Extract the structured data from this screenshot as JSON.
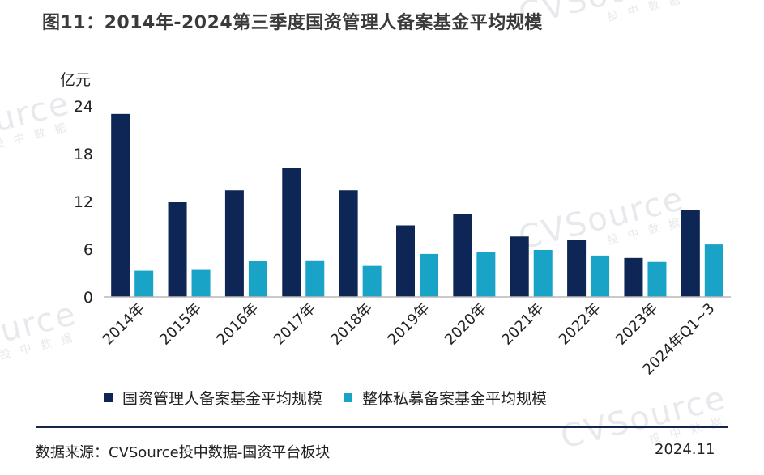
{
  "title": "图11：2014年-2024第三季度国资管理人备案基金平均规模",
  "y_unit": "亿元",
  "watermark": {
    "brand": "CVSource",
    "sub": "投中数据"
  },
  "source": "数据来源：CVSource投中数据-国资平台板块",
  "date": "2024.11",
  "colors": {
    "series1": "#0d2656",
    "series2": "#18a3c7"
  },
  "chart_data": {
    "type": "bar",
    "categories": [
      "2014年",
      "2015年",
      "2016年",
      "2017年",
      "2018年",
      "2019年",
      "2020年",
      "2021年",
      "2022年",
      "2023年",
      "2024年Q1~3"
    ],
    "series": [
      {
        "name": "国资管理人备案基金平均规模",
        "values": [
          23.0,
          11.9,
          13.4,
          16.2,
          13.4,
          9.0,
          10.4,
          7.6,
          7.2,
          4.9,
          10.9
        ]
      },
      {
        "name": "整体私募备案基金平均规模",
        "values": [
          3.3,
          3.4,
          4.5,
          4.6,
          3.9,
          5.4,
          5.6,
          5.9,
          5.2,
          4.4,
          6.6
        ]
      }
    ],
    "yticks": [
      0,
      6,
      12,
      18,
      24
    ],
    "ylim": [
      0,
      24
    ],
    "grid": false,
    "legend": "bottom-left"
  }
}
